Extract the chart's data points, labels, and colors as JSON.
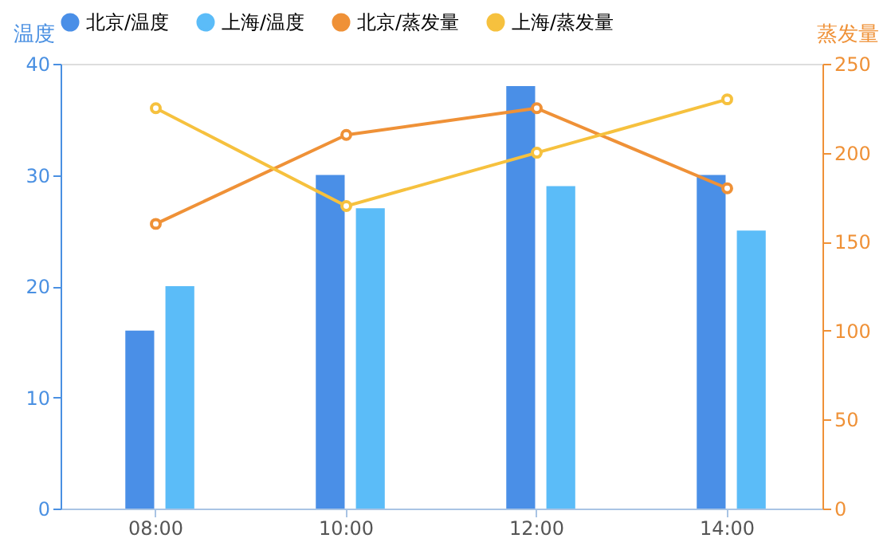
{
  "chart_data": {
    "type": "bar",
    "ylabel": "温度",
    "y2label": "蒸发量",
    "categories": [
      "08:00",
      "10:00",
      "12:00",
      "14:00"
    ],
    "series": [
      {
        "name": "北京/温度",
        "color": "#4a8fe7",
        "values": [
          16,
          30,
          38,
          30
        ]
      },
      {
        "name": "上海/温度",
        "color": "#5bbcf8",
        "values": [
          20,
          27,
          29,
          25
        ]
      },
      {
        "name": "北京/蒸发量",
        "type": "line",
        "axis": "y2",
        "color": "#ef9137",
        "values": [
          160,
          210,
          225,
          180
        ]
      },
      {
        "name": "上海/蒸发量",
        "type": "line",
        "axis": "y2",
        "color": "#f6c13e",
        "values": [
          225,
          170,
          200,
          230
        ]
      }
    ],
    "ylim": [
      0,
      40
    ],
    "yticks": [
      0,
      10,
      20,
      30,
      40
    ],
    "y2lim": [
      0,
      250
    ],
    "y2ticks": [
      0,
      50,
      100,
      150,
      200,
      250
    ],
    "legend": "top",
    "grid": false,
    "marker": "circle",
    "line_style": "solid"
  }
}
